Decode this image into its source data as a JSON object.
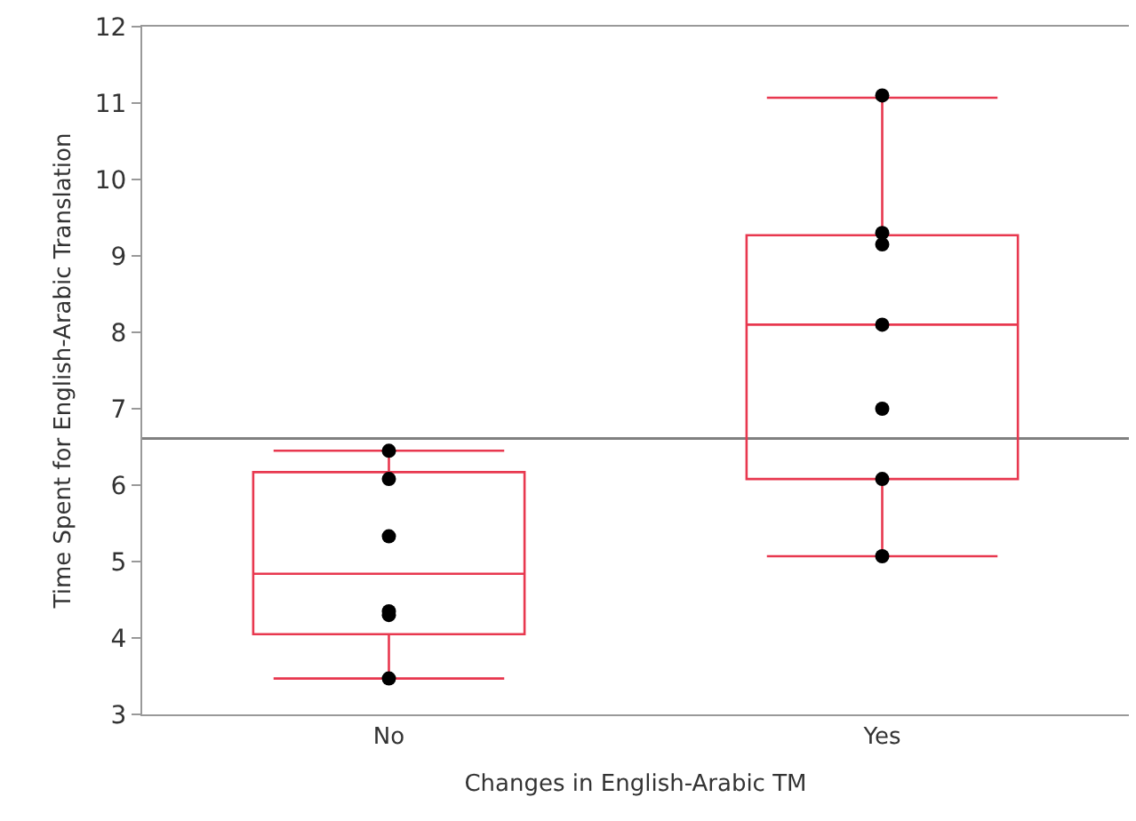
{
  "chart_data": {
    "type": "box",
    "xlabel": "Changes in English-Arabic TM",
    "ylabel": "Time Spent for English-Arabic Translation",
    "categories": [
      "No",
      "Yes"
    ],
    "ylim": [
      3,
      12
    ],
    "yticks": [
      3,
      4,
      5,
      6,
      7,
      8,
      9,
      10,
      11,
      12
    ],
    "grid": false,
    "legend": false,
    "series": [
      {
        "color": "#e8384f",
        "boxes": [
          {
            "low": 3.47,
            "q1": 4.05,
            "median": 4.84,
            "q3": 6.17,
            "high": 6.45
          },
          {
            "low": 5.07,
            "q1": 6.08,
            "median": 8.1,
            "q3": 9.27,
            "high": 11.07
          }
        ]
      },
      {
        "type": "scatter",
        "color": "#000000",
        "marker": "circle",
        "x": [
          "No",
          "No",
          "No",
          "No",
          "No",
          "No",
          "Yes",
          "Yes",
          "Yes",
          "Yes",
          "Yes",
          "Yes",
          "Yes"
        ],
        "values": [
          6.45,
          6.08,
          5.33,
          4.35,
          4.3,
          3.47,
          11.1,
          9.3,
          9.15,
          8.1,
          7.0,
          6.08,
          5.07
        ]
      }
    ],
    "ref_lines": [
      {
        "axis": "y",
        "value": 6.61,
        "color": "#808080"
      }
    ]
  }
}
